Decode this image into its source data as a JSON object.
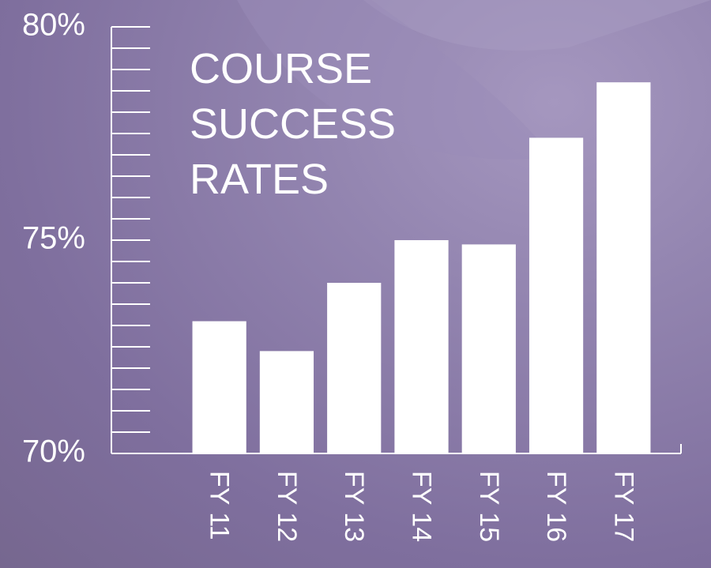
{
  "chart_data": {
    "type": "bar",
    "title": "COURSE SUCCESS RATES",
    "categories": [
      "FY 11",
      "FY 12",
      "FY 13",
      "FY 14",
      "FY 15",
      "FY 16",
      "FY 17"
    ],
    "values": [
      73.1,
      72.4,
      74.0,
      75.0,
      74.9,
      77.4,
      78.7
    ],
    "color": "#ffffff",
    "ylim": [
      70,
      80
    ],
    "yticks": [
      {
        "value": 70,
        "label": "70%"
      },
      {
        "value": 75,
        "label": "75%"
      },
      {
        "value": 80,
        "label": "80%"
      }
    ],
    "minor_yticks": [
      70.5,
      71,
      71.5,
      72,
      72.5,
      73,
      73.5,
      74,
      74.5,
      75.5,
      76,
      76.5,
      77,
      77.5,
      78,
      78.5,
      79,
      79.5
    ]
  }
}
